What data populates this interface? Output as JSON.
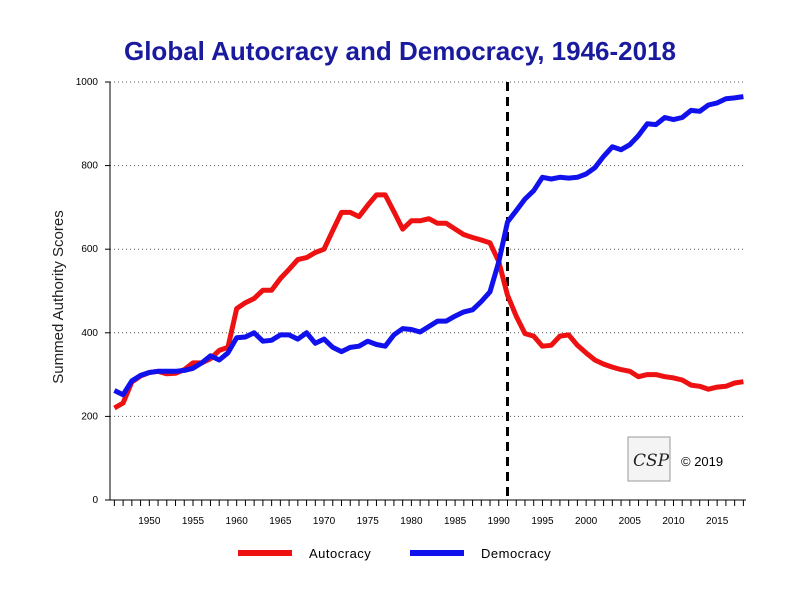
{
  "chart_data": {
    "type": "line",
    "title": "Global Autocracy and Democracy, 1946-2018",
    "xlabel": "",
    "ylabel": "Summed Authority Scores",
    "xlim": [
      1946,
      2018
    ],
    "ylim": [
      0,
      1000
    ],
    "x_ticks": [
      1950,
      1955,
      1960,
      1965,
      1970,
      1975,
      1980,
      1985,
      1990,
      1995,
      2000,
      2005,
      2010,
      2015
    ],
    "y_ticks": [
      0,
      200,
      400,
      600,
      800,
      1000
    ],
    "grid": "horizontal dotted",
    "reference_line": {
      "x": 1991,
      "style": "dashed",
      "color": "#000000"
    },
    "legend_position": "bottom",
    "series": [
      {
        "name": "Autocracy",
        "color": "#ee1111",
        "points": [
          [
            1946,
            220
          ],
          [
            1947,
            232
          ],
          [
            1948,
            282
          ],
          [
            1949,
            297
          ],
          [
            1950,
            305
          ],
          [
            1951,
            308
          ],
          [
            1952,
            302
          ],
          [
            1953,
            303
          ],
          [
            1954,
            312
          ],
          [
            1955,
            328
          ],
          [
            1956,
            328
          ],
          [
            1957,
            338
          ],
          [
            1958,
            358
          ],
          [
            1959,
            365
          ],
          [
            1960,
            458
          ],
          [
            1961,
            472
          ],
          [
            1962,
            482
          ],
          [
            1963,
            502
          ],
          [
            1964,
            502
          ],
          [
            1965,
            530
          ],
          [
            1966,
            552
          ],
          [
            1967,
            575
          ],
          [
            1968,
            580
          ],
          [
            1969,
            592
          ],
          [
            1970,
            600
          ],
          [
            1971,
            645
          ],
          [
            1972,
            688
          ],
          [
            1973,
            688
          ],
          [
            1974,
            678
          ],
          [
            1975,
            705
          ],
          [
            1976,
            730
          ],
          [
            1977,
            730
          ],
          [
            1978,
            690
          ],
          [
            1979,
            648
          ],
          [
            1980,
            668
          ],
          [
            1981,
            668
          ],
          [
            1982,
            673
          ],
          [
            1983,
            662
          ],
          [
            1984,
            662
          ],
          [
            1985,
            648
          ],
          [
            1986,
            635
          ],
          [
            1987,
            628
          ],
          [
            1988,
            622
          ],
          [
            1989,
            615
          ],
          [
            1990,
            570
          ],
          [
            1991,
            490
          ],
          [
            1992,
            440
          ],
          [
            1993,
            398
          ],
          [
            1994,
            392
          ],
          [
            1995,
            368
          ],
          [
            1996,
            370
          ],
          [
            1997,
            392
          ],
          [
            1998,
            395
          ],
          [
            1999,
            370
          ],
          [
            2000,
            352
          ],
          [
            2001,
            335
          ],
          [
            2002,
            325
          ],
          [
            2003,
            318
          ],
          [
            2004,
            312
          ],
          [
            2005,
            308
          ],
          [
            2006,
            295
          ],
          [
            2007,
            300
          ],
          [
            2008,
            300
          ],
          [
            2009,
            295
          ],
          [
            2010,
            292
          ],
          [
            2011,
            287
          ],
          [
            2012,
            275
          ],
          [
            2013,
            272
          ],
          [
            2014,
            265
          ],
          [
            2015,
            270
          ],
          [
            2016,
            272
          ],
          [
            2017,
            280
          ],
          [
            2018,
            283
          ]
        ]
      },
      {
        "name": "Democracy",
        "color": "#1111ee",
        "points": [
          [
            1946,
            262
          ],
          [
            1947,
            252
          ],
          [
            1948,
            285
          ],
          [
            1949,
            298
          ],
          [
            1950,
            305
          ],
          [
            1951,
            308
          ],
          [
            1952,
            308
          ],
          [
            1953,
            308
          ],
          [
            1954,
            310
          ],
          [
            1955,
            315
          ],
          [
            1956,
            328
          ],
          [
            1957,
            345
          ],
          [
            1958,
            335
          ],
          [
            1959,
            352
          ],
          [
            1960,
            388
          ],
          [
            1961,
            390
          ],
          [
            1962,
            400
          ],
          [
            1963,
            380
          ],
          [
            1964,
            382
          ],
          [
            1965,
            395
          ],
          [
            1966,
            395
          ],
          [
            1967,
            385
          ],
          [
            1968,
            400
          ],
          [
            1969,
            375
          ],
          [
            1970,
            385
          ],
          [
            1971,
            365
          ],
          [
            1972,
            355
          ],
          [
            1973,
            365
          ],
          [
            1974,
            368
          ],
          [
            1975,
            380
          ],
          [
            1976,
            372
          ],
          [
            1977,
            368
          ],
          [
            1978,
            395
          ],
          [
            1979,
            410
          ],
          [
            1980,
            408
          ],
          [
            1981,
            402
          ],
          [
            1982,
            415
          ],
          [
            1983,
            428
          ],
          [
            1984,
            428
          ],
          [
            1985,
            440
          ],
          [
            1986,
            450
          ],
          [
            1987,
            455
          ],
          [
            1988,
            475
          ],
          [
            1989,
            498
          ],
          [
            1990,
            570
          ],
          [
            1991,
            665
          ],
          [
            1992,
            692
          ],
          [
            1993,
            720
          ],
          [
            1994,
            740
          ],
          [
            1995,
            772
          ],
          [
            1996,
            768
          ],
          [
            1997,
            772
          ],
          [
            1998,
            770
          ],
          [
            1999,
            772
          ],
          [
            2000,
            780
          ],
          [
            2001,
            795
          ],
          [
            2002,
            822
          ],
          [
            2003,
            845
          ],
          [
            2004,
            838
          ],
          [
            2005,
            850
          ],
          [
            2006,
            872
          ],
          [
            2007,
            900
          ],
          [
            2008,
            898
          ],
          [
            2009,
            915
          ],
          [
            2010,
            910
          ],
          [
            2011,
            915
          ],
          [
            2012,
            932
          ],
          [
            2013,
            930
          ],
          [
            2014,
            945
          ],
          [
            2015,
            950
          ],
          [
            2016,
            960
          ],
          [
            2017,
            962
          ],
          [
            2018,
            965
          ]
        ]
      }
    ],
    "annotations": [
      "© 2019"
    ],
    "logo": "CSP"
  },
  "page": {
    "copyright": "© 2019",
    "logo_text": "CSP"
  }
}
